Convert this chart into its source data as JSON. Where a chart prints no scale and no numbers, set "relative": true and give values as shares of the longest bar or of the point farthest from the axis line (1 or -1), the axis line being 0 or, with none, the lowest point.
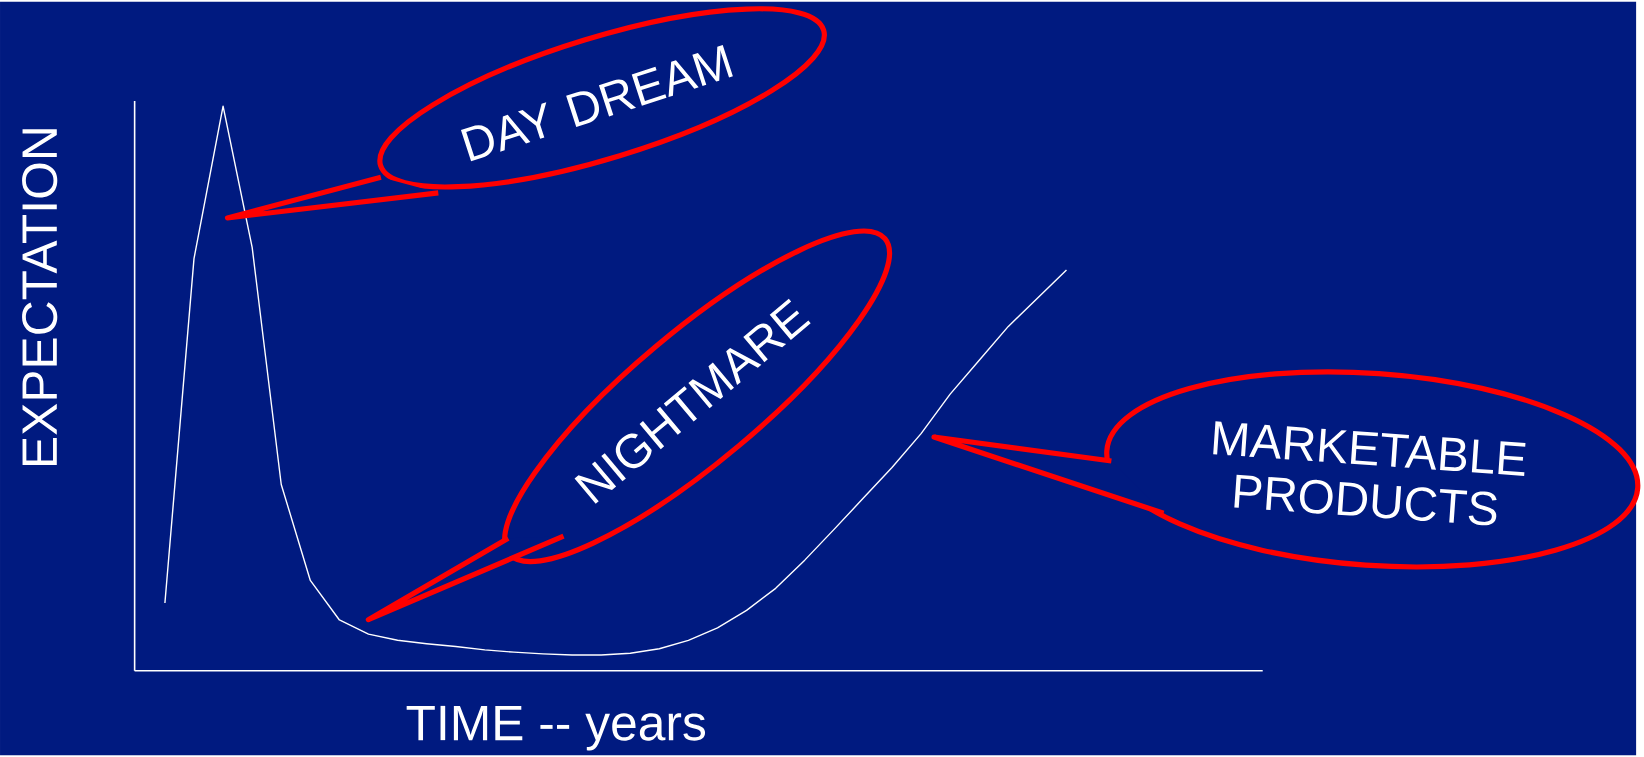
{
  "chart_data": {
    "type": "line",
    "relative": true,
    "xlabel": "TIME -- years",
    "ylabel": "EXPECTATION",
    "categories": [
      null,
      null,
      null,
      null,
      null,
      null,
      null,
      null,
      null,
      null,
      null,
      null,
      null,
      null,
      null,
      null,
      null,
      null,
      null,
      null,
      null,
      null,
      null,
      null,
      null,
      null,
      null,
      null,
      null,
      null,
      null,
      null
    ],
    "series": [
      {
        "color": "#ffffff",
        "values": [
          0.12,
          0.73,
          1,
          0.75,
          0.33,
          0.16,
          0.09,
          0.065,
          0.054,
          0.048,
          0.043,
          0.037,
          0.033,
          0.03,
          0.028,
          0.028,
          0.031,
          0.039,
          0.054,
          0.076,
          0.107,
          0.146,
          0.196,
          0.25,
          0.305,
          0.36,
          0.42,
          0.49,
          0.55,
          0.61,
          0.66,
          0.71
        ]
      }
    ],
    "annotations": [
      "DAY DREAM",
      "NIGHTMARE",
      "MARKETABLE PRODUCTS"
    ],
    "marker": "none",
    "line_style": "solid"
  }
}
